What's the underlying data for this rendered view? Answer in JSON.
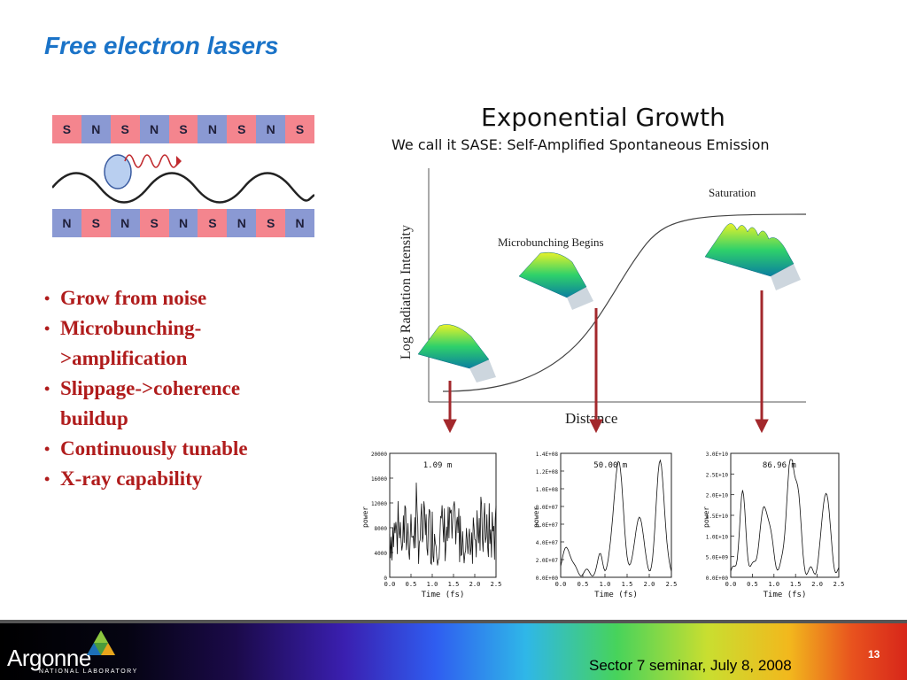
{
  "slide": {
    "title": "Free electron lasers",
    "magnets_top": [
      "S",
      "N",
      "S",
      "N",
      "S",
      "N",
      "S",
      "N",
      "S"
    ],
    "magnets_bottom": [
      "N",
      "S",
      "N",
      "S",
      "N",
      "S",
      "N",
      "S",
      "N"
    ],
    "bullets": [
      "Grow from noise",
      "Microbunching->amplification",
      "Slippage->coherence buildup",
      "Continuously tunable",
      "X-ray capability"
    ],
    "growth_title": "Exponential Growth",
    "growth_subtitle": "We call it SASE: Self-Amplified Spontaneous Emission",
    "growth_ylabel": "Log Radiation Intensity",
    "growth_xlabel": "Distance",
    "label_microbunching": "Microbunching Begins",
    "label_saturation": "Saturation"
  },
  "mini_plots": [
    {
      "label": "1.09 m",
      "yticks": [
        "0",
        "4000",
        "8000",
        "12000",
        "16000",
        "20000"
      ],
      "ylabel": "power",
      "xticks": [
        "0.0",
        "0.5",
        "1.0",
        "1.5",
        "2.0",
        "2.5"
      ],
      "xlabel": "Time (fs)"
    },
    {
      "label": "50.00 m",
      "yticks": [
        "0.0E+00",
        "2.0E+07",
        "4.0E+07",
        "6.0E+07",
        "8.0E+07",
        "1.0E+08",
        "1.2E+08",
        "1.4E+08"
      ],
      "ylabel": "power",
      "xticks": [
        "0.0",
        "0.5",
        "1.0",
        "1.5",
        "2.0",
        "2.5"
      ],
      "xlabel": "Time (fs)"
    },
    {
      "label": "86.96 m",
      "yticks": [
        "0.0E+00",
        "5.0E+09",
        "1.0E+10",
        "1.5E+10",
        "2.0E+10",
        "2.5E+10",
        "3.0E+10"
      ],
      "ylabel": "power",
      "xticks": [
        "0.0",
        "0.5",
        "1.0",
        "1.5",
        "2.0",
        "2.5"
      ],
      "xlabel": "Time (fs)"
    }
  ],
  "footer": {
    "logo_text": "Argonne",
    "logo_sub": "NATIONAL LABORATORY",
    "event": "Sector 7 seminar, July 8, 2008",
    "page": "13"
  },
  "colors": {
    "title": "#1a73c8",
    "bullet": "#b01c1c",
    "arrow": "#a3282c",
    "magnet_pink": "#f4858e",
    "magnet_blue": "#8a99d3"
  }
}
